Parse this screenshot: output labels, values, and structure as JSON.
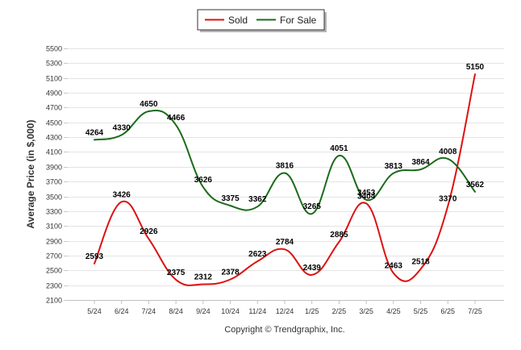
{
  "chart_data": {
    "type": "line",
    "categories": [
      "5/24",
      "6/24",
      "7/24",
      "8/24",
      "9/24",
      "10/24",
      "11/24",
      "12/24",
      "1/25",
      "2/25",
      "3/25",
      "4/25",
      "5/25",
      "6/25",
      "7/25"
    ],
    "series": [
      {
        "name": "Sold",
        "color": "#dd1111",
        "values": [
          2593,
          3426,
          2926,
          2375,
          2312,
          2378,
          2623,
          2784,
          2439,
          2885,
          3404,
          2463,
          2518,
          3370,
          5150
        ]
      },
      {
        "name": "For Sale",
        "color": "#1a6b1a",
        "values": [
          4264,
          4330,
          4650,
          4466,
          3626,
          3375,
          3362,
          3816,
          3265,
          4051,
          3453,
          3813,
          3864,
          4008,
          3562
        ]
      }
    ],
    "ylabel": "Average Price (in $,000)",
    "xlabel": "",
    "ylim": [
      2100,
      5500
    ],
    "yticks": [
      2100,
      2300,
      2500,
      2700,
      2900,
      3100,
      3300,
      3500,
      3700,
      3900,
      4100,
      4300,
      4500,
      4700,
      4900,
      5100,
      5300,
      5500
    ],
    "grid": true,
    "legend_position": "top-center"
  },
  "footer": {
    "copyright": "Copyright © Trendgraphix, Inc."
  }
}
